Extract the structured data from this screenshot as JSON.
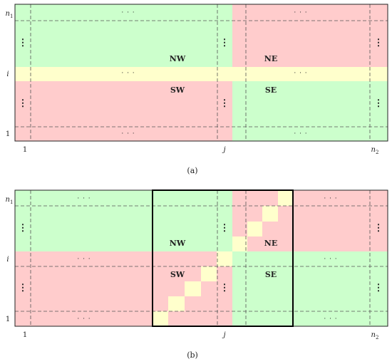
{
  "colors": {
    "green": "#ccffcc",
    "red": "#ffcccc",
    "yellow": "#ffffcc",
    "dash": "#555555",
    "border": "#222222"
  },
  "panel_a": {
    "caption": "(a)",
    "labels": {
      "nw": "NW",
      "ne": "NE",
      "sw": "SW",
      "se": "SE"
    },
    "y_ticks": {
      "top": "n1",
      "mid": "i",
      "bottom": "1"
    },
    "x_ticks": {
      "left": "1",
      "mid": "j",
      "right": "n2"
    },
    "hdots": "· · ·",
    "vdots": "⋮"
  },
  "panel_b": {
    "caption": "(b)",
    "labels": {
      "nw": "NW",
      "ne": "NE",
      "sw": "SW",
      "se": "SE"
    },
    "y_ticks": {
      "top": "n1",
      "mid": "i",
      "bottom": "1"
    },
    "x_ticks": {
      "left": "1",
      "mid": "j",
      "right": "n2"
    },
    "hdots": "· · ·",
    "vdots": "⋮"
  }
}
